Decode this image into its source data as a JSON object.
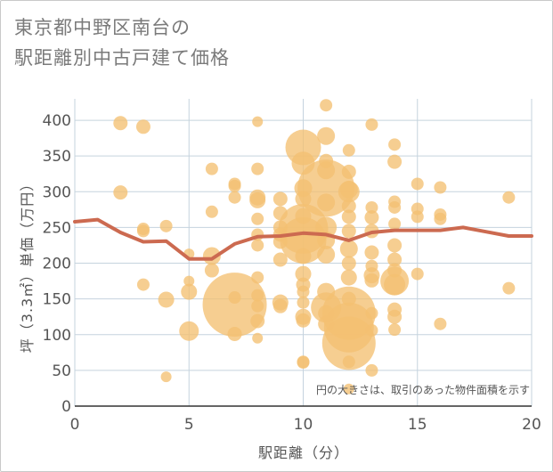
{
  "chart_data": {
    "type": "scatter",
    "title_line1": "東京都中野区南台の",
    "title_line2": "駅距離別中古戸建て価格",
    "xlabel": "駅距離（分）",
    "ylabel": "坪（3.3㎡）単価（万円）",
    "xlim": [
      0,
      20
    ],
    "ylim": [
      0,
      430
    ],
    "xticks": [
      "0",
      "5",
      "10",
      "15",
      "20"
    ],
    "yticks": [
      "0",
      "50",
      "100",
      "150",
      "200",
      "250",
      "300",
      "350",
      "400"
    ],
    "grid": true,
    "note": "円の大きさは、取引のあった物件面積を示す",
    "bubble_color": "#f3c072",
    "line_color": "#cc6a50",
    "points": [
      {
        "x": 2,
        "y": 396,
        "s": 8
      },
      {
        "x": 2,
        "y": 299,
        "s": 8
      },
      {
        "x": 3,
        "y": 391,
        "s": 8
      },
      {
        "x": 3,
        "y": 248,
        "s": 7
      },
      {
        "x": 3,
        "y": 245,
        "s": 7
      },
      {
        "x": 3,
        "y": 170,
        "s": 7
      },
      {
        "x": 4,
        "y": 252,
        "s": 7
      },
      {
        "x": 4,
        "y": 149,
        "s": 9
      },
      {
        "x": 4,
        "y": 41,
        "s": 6
      },
      {
        "x": 5,
        "y": 213,
        "s": 6
      },
      {
        "x": 5,
        "y": 175,
        "s": 6
      },
      {
        "x": 5,
        "y": 160,
        "s": 9
      },
      {
        "x": 5,
        "y": 105,
        "s": 11
      },
      {
        "x": 6,
        "y": 332,
        "s": 7
      },
      {
        "x": 6,
        "y": 272,
        "s": 7
      },
      {
        "x": 6,
        "y": 210,
        "s": 10
      },
      {
        "x": 6,
        "y": 190,
        "s": 8
      },
      {
        "x": 7,
        "y": 311,
        "s": 7
      },
      {
        "x": 7,
        "y": 308,
        "s": 7
      },
      {
        "x": 7,
        "y": 292,
        "s": 7
      },
      {
        "x": 7,
        "y": 142,
        "s": 36
      },
      {
        "x": 7,
        "y": 152,
        "s": 7
      },
      {
        "x": 7,
        "y": 101,
        "s": 8
      },
      {
        "x": 8,
        "y": 398,
        "s": 6
      },
      {
        "x": 8,
        "y": 332,
        "s": 7
      },
      {
        "x": 8,
        "y": 292,
        "s": 9
      },
      {
        "x": 8,
        "y": 288,
        "s": 9
      },
      {
        "x": 8,
        "y": 262,
        "s": 7
      },
      {
        "x": 8,
        "y": 240,
        "s": 7
      },
      {
        "x": 8,
        "y": 225,
        "s": 7
      },
      {
        "x": 8,
        "y": 180,
        "s": 7
      },
      {
        "x": 8,
        "y": 155,
        "s": 7
      },
      {
        "x": 8,
        "y": 140,
        "s": 7
      },
      {
        "x": 8,
        "y": 119,
        "s": 8
      },
      {
        "x": 8,
        "y": 95,
        "s": 6
      },
      {
        "x": 9,
        "y": 290,
        "s": 8
      },
      {
        "x": 9,
        "y": 270,
        "s": 8
      },
      {
        "x": 9,
        "y": 250,
        "s": 8
      },
      {
        "x": 9,
        "y": 240,
        "s": 8
      },
      {
        "x": 9,
        "y": 230,
        "s": 8
      },
      {
        "x": 9,
        "y": 205,
        "s": 8
      },
      {
        "x": 9,
        "y": 145,
        "s": 9
      },
      {
        "x": 9,
        "y": 140,
        "s": 8
      },
      {
        "x": 10,
        "y": 362,
        "s": 20
      },
      {
        "x": 10,
        "y": 340,
        "s": 13
      },
      {
        "x": 10,
        "y": 305,
        "s": 10
      },
      {
        "x": 10,
        "y": 290,
        "s": 9
      },
      {
        "x": 10,
        "y": 266,
        "s": 9
      },
      {
        "x": 10,
        "y": 248,
        "s": 28
      },
      {
        "x": 10,
        "y": 232,
        "s": 26
      },
      {
        "x": 10,
        "y": 210,
        "s": 9
      },
      {
        "x": 10,
        "y": 185,
        "s": 9
      },
      {
        "x": 10,
        "y": 170,
        "s": 8
      },
      {
        "x": 10,
        "y": 160,
        "s": 7
      },
      {
        "x": 10,
        "y": 145,
        "s": 7
      },
      {
        "x": 10,
        "y": 125,
        "s": 9
      },
      {
        "x": 10,
        "y": 120,
        "s": 8
      },
      {
        "x": 10,
        "y": 62,
        "s": 7
      },
      {
        "x": 10,
        "y": 61,
        "s": 7
      },
      {
        "x": 11,
        "y": 421,
        "s": 7
      },
      {
        "x": 11,
        "y": 378,
        "s": 10
      },
      {
        "x": 11,
        "y": 343,
        "s": 8
      },
      {
        "x": 11,
        "y": 330,
        "s": 10
      },
      {
        "x": 11,
        "y": 305,
        "s": 32
      },
      {
        "x": 11,
        "y": 285,
        "s": 10
      },
      {
        "x": 11,
        "y": 250,
        "s": 12
      },
      {
        "x": 11,
        "y": 232,
        "s": 10
      },
      {
        "x": 11,
        "y": 212,
        "s": 10
      },
      {
        "x": 11,
        "y": 160,
        "s": 10
      },
      {
        "x": 11,
        "y": 138,
        "s": 17
      },
      {
        "x": 11,
        "y": 130,
        "s": 9
      },
      {
        "x": 11,
        "y": 115,
        "s": 9
      },
      {
        "x": 12,
        "y": 358,
        "s": 7
      },
      {
        "x": 12,
        "y": 328,
        "s": 8
      },
      {
        "x": 12,
        "y": 303,
        "s": 10
      },
      {
        "x": 12,
        "y": 300,
        "s": 12
      },
      {
        "x": 12,
        "y": 280,
        "s": 8
      },
      {
        "x": 12,
        "y": 265,
        "s": 8
      },
      {
        "x": 12,
        "y": 245,
        "s": 8
      },
      {
        "x": 12,
        "y": 220,
        "s": 10
      },
      {
        "x": 12,
        "y": 200,
        "s": 8
      },
      {
        "x": 12,
        "y": 180,
        "s": 9
      },
      {
        "x": 12,
        "y": 150,
        "s": 8
      },
      {
        "x": 12,
        "y": 130,
        "s": 30
      },
      {
        "x": 12,
        "y": 110,
        "s": 28
      },
      {
        "x": 12,
        "y": 88,
        "s": 30
      },
      {
        "x": 12,
        "y": 62,
        "s": 7
      },
      {
        "x": 12,
        "y": 24,
        "s": 6
      },
      {
        "x": 13,
        "y": 394,
        "s": 7
      },
      {
        "x": 13,
        "y": 278,
        "s": 7
      },
      {
        "x": 13,
        "y": 264,
        "s": 8
      },
      {
        "x": 13,
        "y": 245,
        "s": 8
      },
      {
        "x": 13,
        "y": 215,
        "s": 8
      },
      {
        "x": 13,
        "y": 196,
        "s": 7
      },
      {
        "x": 13,
        "y": 183,
        "s": 9
      },
      {
        "x": 13,
        "y": 176,
        "s": 8
      },
      {
        "x": 13,
        "y": 130,
        "s": 7
      },
      {
        "x": 13,
        "y": 106,
        "s": 7
      },
      {
        "x": 13,
        "y": 50,
        "s": 7
      },
      {
        "x": 14,
        "y": 366,
        "s": 7
      },
      {
        "x": 14,
        "y": 342,
        "s": 8
      },
      {
        "x": 14,
        "y": 286,
        "s": 7
      },
      {
        "x": 14,
        "y": 278,
        "s": 7
      },
      {
        "x": 14,
        "y": 255,
        "s": 7
      },
      {
        "x": 14,
        "y": 225,
        "s": 8
      },
      {
        "x": 14,
        "y": 205,
        "s": 8
      },
      {
        "x": 14,
        "y": 190,
        "s": 8
      },
      {
        "x": 14,
        "y": 175,
        "s": 16
      },
      {
        "x": 14,
        "y": 170,
        "s": 12
      },
      {
        "x": 14,
        "y": 135,
        "s": 8
      },
      {
        "x": 14,
        "y": 125,
        "s": 8
      },
      {
        "x": 14,
        "y": 107,
        "s": 7
      },
      {
        "x": 15,
        "y": 311,
        "s": 7
      },
      {
        "x": 15,
        "y": 276,
        "s": 7
      },
      {
        "x": 15,
        "y": 265,
        "s": 7
      },
      {
        "x": 15,
        "y": 185,
        "s": 7
      },
      {
        "x": 16,
        "y": 306,
        "s": 7
      },
      {
        "x": 16,
        "y": 268,
        "s": 7
      },
      {
        "x": 16,
        "y": 262,
        "s": 7
      },
      {
        "x": 16,
        "y": 115,
        "s": 7
      },
      {
        "x": 19,
        "y": 292,
        "s": 7
      },
      {
        "x": 19,
        "y": 165,
        "s": 7
      }
    ],
    "trend": {
      "x": [
        0,
        1,
        2,
        3,
        4,
        5,
        6,
        7,
        8,
        9,
        10,
        11,
        12,
        13,
        14,
        15,
        16,
        17,
        18,
        19,
        20
      ],
      "y": [
        258,
        261,
        243,
        230,
        231,
        206,
        206,
        227,
        237,
        238,
        242,
        240,
        232,
        243,
        246,
        246,
        246,
        250,
        244,
        238,
        238
      ]
    }
  }
}
